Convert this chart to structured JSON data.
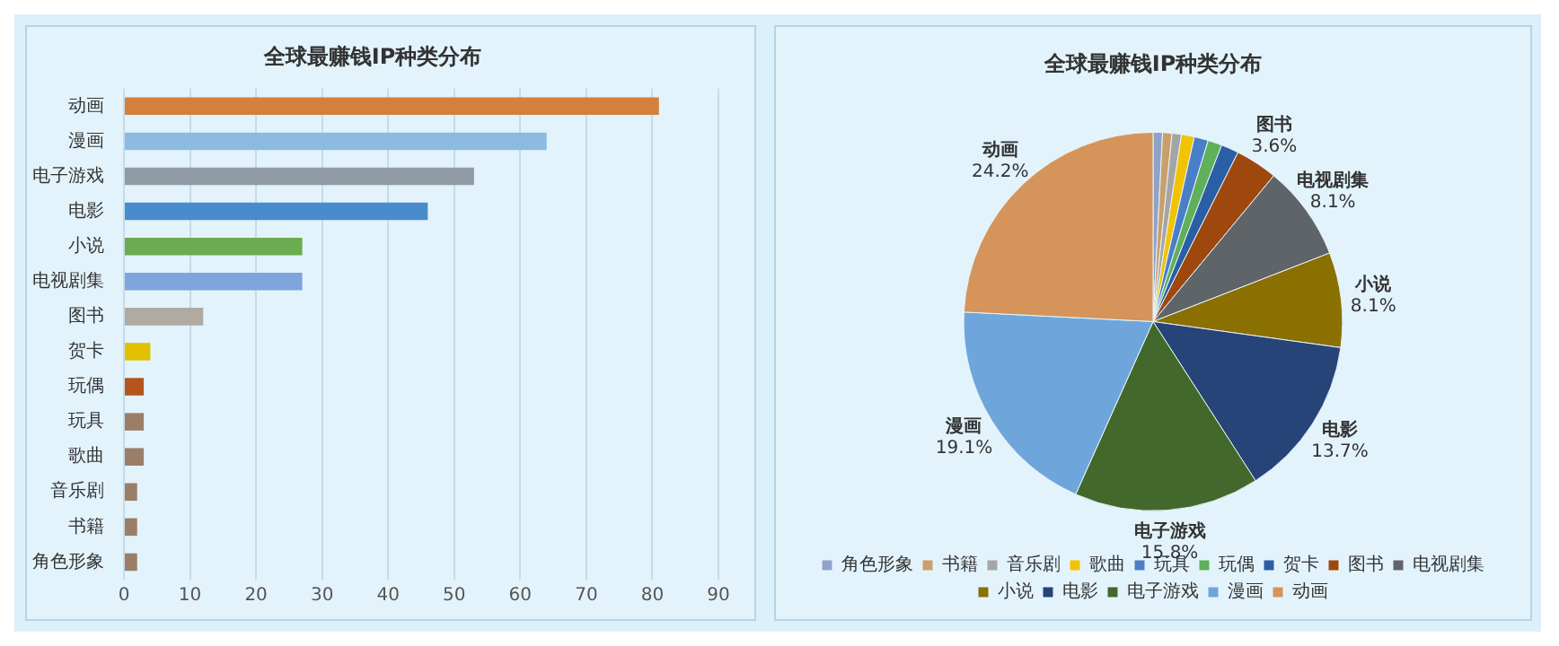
{
  "chart_data": [
    {
      "type": "bar",
      "orientation": "horizontal",
      "title": "全球最赚钱IP种类分布",
      "categories": [
        "动画",
        "漫画",
        "电子游戏",
        "电影",
        "小说",
        "电视剧集",
        "图书",
        "贺卡",
        "玩偶",
        "玩具",
        "歌曲",
        "音乐剧",
        "书籍",
        "角色形象"
      ],
      "values": [
        81,
        64,
        53,
        46,
        27,
        27,
        12,
        4,
        3,
        3,
        3,
        2,
        2,
        2
      ],
      "colors": [
        "#d3803f",
        "#8dbbe0",
        "#8e9ba3",
        "#4a8bcb",
        "#6aac4f",
        "#7fa4dc",
        "#b0aaa2",
        "#e0c000",
        "#b4561c",
        "#9a7e68",
        "#9a7e68",
        "#9a7e68",
        "#9a7e68",
        "#9a7e68"
      ],
      "xlim": [
        0,
        90
      ],
      "xticks": [
        0,
        10,
        20,
        30,
        40,
        50,
        60,
        70,
        80,
        90
      ],
      "grid": "x",
      "legend": false
    },
    {
      "type": "pie",
      "title": "全球最赚钱IP种类分布",
      "categories": [
        "角色形象",
        "书籍",
        "音乐剧",
        "歌曲",
        "玩具",
        "玩偶",
        "贺卡",
        "图书",
        "电视剧集",
        "小说",
        "电影",
        "电子游戏",
        "漫画",
        "动画"
      ],
      "values": [
        0.8,
        0.8,
        0.8,
        1.1,
        1.2,
        1.2,
        1.5,
        3.6,
        8.1,
        8.1,
        13.7,
        15.8,
        19.1,
        24.2
      ],
      "value_labels": [
        null,
        null,
        null,
        null,
        null,
        null,
        null,
        "3.6%",
        "8.1%",
        "8.1%",
        "13.7%",
        "15.8%",
        "19.1%",
        "24.2%"
      ],
      "colors": [
        "#8fa3c8",
        "#c9a06a",
        "#a5a5a5",
        "#f2c300",
        "#4a7fc7",
        "#5fb05a",
        "#2a5fa5",
        "#9e480e",
        "#5f6468",
        "#8a7000",
        "#264478",
        "#43682b",
        "#6ea6dc",
        "#d4945a"
      ],
      "legend": "bottom"
    }
  ]
}
